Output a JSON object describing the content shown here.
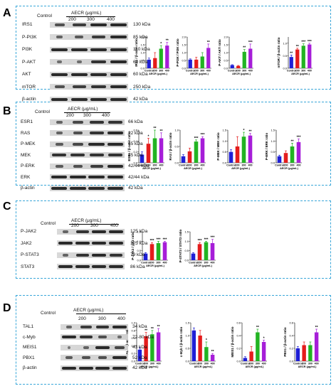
{
  "colors": {
    "control": "#1f1fd6",
    "c200": "#e41c1c",
    "c300": "#22b422",
    "c400": "#a61ed8",
    "border": "#3aa7d9"
  },
  "panels": [
    {
      "letter": "A",
      "treatment_label": "AECR (μg/mL)",
      "control_label": "Control",
      "dose_labels": [
        "200",
        "300",
        "400"
      ],
      "blots": [
        {
          "name": "IRS1",
          "kda": "130 kDa"
        },
        {
          "name": "P-PI3K",
          "kda": "85 kDa"
        },
        {
          "name": "PI3K",
          "kda": "110 kDa"
        },
        {
          "name": "P-AKT",
          "kda": "60 kDa"
        },
        {
          "name": "AKT",
          "kda": "60 kDa"
        },
        {
          "name": "mTOR",
          "kda": "250 kDa"
        },
        {
          "name": "β-actin",
          "kda": "42 kDa"
        }
      ]
    },
    {
      "letter": "B",
      "treatment_label": "AECR (μg/mL)",
      "control_label": "Control",
      "dose_labels": [
        "200",
        "300",
        "400"
      ],
      "blots": [
        {
          "name": "ESR1",
          "kda": "66 kDa"
        },
        {
          "name": "RAS",
          "kda": "22 kDa"
        },
        {
          "name": "P-MEK",
          "kda": "45 kDa"
        },
        {
          "name": "MEK",
          "kda": "45 kDa"
        },
        {
          "name": "P-ERK",
          "kda": "42/44 kDa"
        },
        {
          "name": "ERK",
          "kda": "42/44 kDa"
        },
        {
          "name": "β-actin",
          "kda": "42 kDa"
        }
      ]
    },
    {
      "letter": "C",
      "treatment_label": "AECR (μg/mL)",
      "control_label": "Control",
      "dose_labels": [
        "200",
        "300",
        "400"
      ],
      "blots": [
        {
          "name": "P-JAK2",
          "kda": "125 kDa"
        },
        {
          "name": "JAK2",
          "kda": "125 kDa"
        },
        {
          "name": "P-STAT3",
          "kda": "79 kDa"
        },
        {
          "name": "STAT3",
          "kda": "86 kDa"
        }
      ]
    },
    {
      "letter": "D",
      "treatment_label": "AECR (μg/mL)",
      "control_label": "Control",
      "dose_labels": [
        "200",
        "300",
        "400"
      ],
      "blots": [
        {
          "name": "TAL1",
          "kda": "34 kDa"
        },
        {
          "name": "c-Myb",
          "kda": "72-80 kDa"
        },
        {
          "name": "MEIS1",
          "kda": "43 kDa"
        },
        {
          "name": "PBX1",
          "kda": "52 kDa"
        },
        {
          "name": "β-actin",
          "kda": "42 kDa"
        }
      ]
    }
  ],
  "chart_data": [
    {
      "type": "bar",
      "panel": "A",
      "ylabel": "IRS1 / β-actin ratio",
      "xlabel": "AECR (μg/mL)",
      "categories": [
        "Control",
        "200",
        "300",
        "400"
      ],
      "values": [
        0.55,
        0.65,
        1.25,
        1.45
      ],
      "errors": [
        0.1,
        0.35,
        0.2,
        0.2
      ],
      "sig": [
        "",
        "",
        "*",
        "**"
      ],
      "ylim": [
        0,
        2.0
      ],
      "yticks": [
        "0.0",
        "0.5",
        "1.0",
        "1.5",
        "2.0"
      ]
    },
    {
      "type": "bar",
      "panel": "A",
      "ylabel": "P-PI3K / PI3K ratio",
      "xlabel": "AECR (μg/mL)",
      "categories": [
        "Control",
        "200",
        "300",
        "400"
      ],
      "values": [
        0.55,
        0.55,
        0.75,
        1.3
      ],
      "errors": [
        0.05,
        0.15,
        0.25,
        0.25
      ],
      "sig": [
        "",
        "",
        "",
        "**"
      ],
      "ylim": [
        0,
        2.0
      ],
      "yticks": [
        "0.0",
        "0.5",
        "1.0",
        "1.5",
        "2.0"
      ]
    },
    {
      "type": "bar",
      "panel": "A",
      "ylabel": "P-AKT / AKT ratio",
      "xlabel": "AECR (μg/mL)",
      "categories": [
        "Control",
        "200",
        "300",
        "400"
      ],
      "values": [
        0.2,
        0.15,
        1.05,
        1.25
      ],
      "errors": [
        0.03,
        0.03,
        0.15,
        0.3
      ],
      "sig": [
        "",
        "",
        "**",
        "***"
      ],
      "ylim": [
        0,
        2.0
      ],
      "yticks": [
        "0.0",
        "0.5",
        "1.0",
        "1.5",
        "2.0"
      ]
    },
    {
      "type": "bar",
      "panel": "A",
      "ylabel": "mTOR / β-actin ratio",
      "xlabel": "AECR (μg/mL)",
      "categories": [
        "Control",
        "200",
        "300",
        "400"
      ],
      "values": [
        0.45,
        0.75,
        0.9,
        0.95
      ],
      "errors": [
        0.08,
        0.05,
        0.08,
        0.05
      ],
      "sig": [
        "**",
        "**",
        "***",
        "***"
      ],
      "ylim": [
        0,
        1.25
      ],
      "yticks": [
        "0.0",
        "0.5",
        "1.0"
      ]
    },
    {
      "type": "bar",
      "panel": "B",
      "ylabel": "ESR1 / β-actin ratio",
      "xlabel": "AECR (μg/mL)",
      "categories": [
        "Control",
        "200",
        "300",
        "400"
      ],
      "values": [
        0.15,
        0.35,
        0.45,
        0.45
      ],
      "errors": [
        0.05,
        0.1,
        0.15,
        0.1
      ],
      "sig": [
        "",
        "*",
        "**",
        "**"
      ],
      "ylim": [
        0,
        0.6
      ],
      "yticks": [
        "0.0",
        "0.2",
        "0.4",
        "0.6"
      ]
    },
    {
      "type": "bar",
      "panel": "B",
      "ylabel": "RAS / β-actin ratio",
      "xlabel": "AECR (μg/mL)",
      "categories": [
        "Control",
        "200",
        "300",
        "400"
      ],
      "values": [
        0.2,
        0.35,
        0.65,
        0.75
      ],
      "errors": [
        0.05,
        0.1,
        0.05,
        0.05
      ],
      "sig": [
        "",
        "",
        "***",
        "***"
      ],
      "ylim": [
        0,
        1.0
      ],
      "yticks": [
        "0.0",
        "0.5",
        "1.0"
      ]
    },
    {
      "type": "bar",
      "panel": "B",
      "ylabel": "P-MEK / MEK ratio",
      "xlabel": "AECR (μg/mL)",
      "categories": [
        "Control",
        "200",
        "300",
        "400"
      ],
      "values": [
        0.5,
        0.75,
        1.2,
        1.25
      ],
      "errors": [
        0.1,
        0.45,
        0.2,
        0.1
      ],
      "sig": [
        "",
        "",
        "*",
        "**"
      ],
      "ylim": [
        0,
        1.5
      ],
      "yticks": [
        "0.0",
        "0.5",
        "1.0",
        "1.5"
      ]
    },
    {
      "type": "bar",
      "panel": "B",
      "ylabel": "P-ERK / ERK ratio",
      "xlabel": "AECR (μg/mL)",
      "categories": [
        "Control",
        "200",
        "300",
        "400"
      ],
      "values": [
        0.3,
        0.45,
        0.75,
        0.95
      ],
      "errors": [
        0.05,
        0.1,
        0.15,
        0.15
      ],
      "sig": [
        "",
        "",
        "**",
        "***"
      ],
      "ylim": [
        0,
        1.5
      ],
      "yticks": [
        "0.0",
        "0.5",
        "1.0",
        "1.5"
      ]
    },
    {
      "type": "bar",
      "panel": "C",
      "ylabel": "P-JAK2 / jak2 ratio",
      "xlabel": "AECR (μg/mL)",
      "categories": [
        "Control",
        "200",
        "300",
        "400"
      ],
      "values": [
        0.35,
        0.85,
        0.9,
        0.95
      ],
      "errors": [
        0.05,
        0.08,
        0.1,
        0.05
      ],
      "sig": [
        "",
        "***",
        "***",
        "***"
      ],
      "ylim": [
        0,
        1.5
      ],
      "yticks": [
        "0.0",
        "0.5",
        "1.0",
        "1.5"
      ]
    },
    {
      "type": "bar",
      "panel": "C",
      "ylabel": "P-STAT3 / STAT3 ratio",
      "xlabel": "AECR (μg/mL)",
      "categories": [
        "Control",
        "200",
        "300",
        "400"
      ],
      "values": [
        0.35,
        0.85,
        0.95,
        0.9
      ],
      "errors": [
        0.05,
        0.08,
        0.05,
        0.2
      ],
      "sig": [
        "",
        "***",
        "***",
        "***"
      ],
      "ylim": [
        0,
        1.5
      ],
      "yticks": [
        "0.0",
        "0.5",
        "1.0",
        "1.5"
      ]
    },
    {
      "type": "bar",
      "panel": "D",
      "ylabel": "TAL1 / β-actin ratio",
      "xlabel": "AECR (μg/mL)",
      "categories": [
        "Control",
        "200",
        "300",
        "400"
      ],
      "values": [
        0.3,
        0.65,
        0.7,
        0.75
      ],
      "errors": [
        0.05,
        0.1,
        0.1,
        0.1
      ],
      "sig": [
        "",
        "**",
        "**",
        "**"
      ],
      "ylim": [
        0,
        1.0
      ],
      "yticks": [
        "0.0",
        "0.2",
        "0.4",
        "0.6",
        "0.8",
        "1.0"
      ]
    },
    {
      "type": "bar",
      "panel": "D",
      "ylabel": "c-Myb / β-actin ratio",
      "xlabel": "AECR (μg/mL)",
      "categories": [
        "Control",
        "200",
        "300",
        "400"
      ],
      "values": [
        1.2,
        1.0,
        0.55,
        0.25
      ],
      "errors": [
        0.1,
        0.2,
        0.2,
        0.05
      ],
      "sig": [
        "",
        "",
        "*",
        "**"
      ],
      "ylim": [
        0,
        1.5
      ],
      "yticks": [
        "0.0",
        "0.5",
        "1.0",
        "1.5"
      ]
    },
    {
      "type": "bar",
      "panel": "D",
      "ylabel": "MEIS1 / β-actin ratio",
      "xlabel": "AECR (μg/mL)",
      "categories": [
        "Control",
        "200",
        "300",
        "400"
      ],
      "values": [
        0.05,
        0.15,
        0.45,
        0.3
      ],
      "errors": [
        0.02,
        0.08,
        0.05,
        0.03
      ],
      "sig": [
        "",
        "",
        "**",
        "*"
      ],
      "ylim": [
        0,
        0.6
      ],
      "yticks": [
        "0.0",
        "0.2",
        "0.4",
        "0.6"
      ]
    },
    {
      "type": "bar",
      "panel": "D",
      "ylabel": "PBX1 / β-actin ratio",
      "xlabel": "AECR (μg/mL)",
      "categories": [
        "Control",
        "200",
        "300",
        "400"
      ],
      "values": [
        0.2,
        0.25,
        0.25,
        0.45
      ],
      "errors": [
        0.03,
        0.05,
        0.05,
        0.05
      ],
      "sig": [
        "",
        "",
        "",
        "**"
      ],
      "ylim": [
        0,
        0.6
      ],
      "yticks": [
        "0.0",
        "0.2",
        "0.4",
        "0.6"
      ]
    }
  ]
}
